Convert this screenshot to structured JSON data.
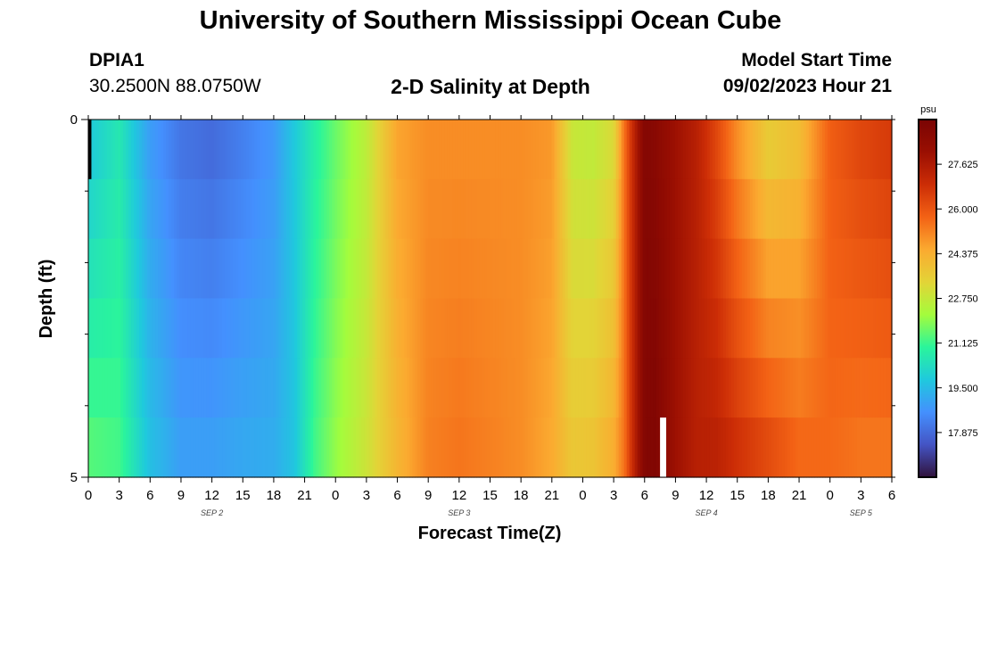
{
  "header": {
    "title": "University of Southern Mississippi Ocean Cube",
    "station": "DPIA1",
    "coords": "30.2500N  88.0750W",
    "plot_title": "2-D Salinity at Depth",
    "model_start_label": "Model Start Time",
    "model_start_value": "09/02/2023 Hour 21"
  },
  "footer": {
    "title": "University of Southern Mississippi Ocean Cube"
  },
  "chart_data": {
    "type": "heatmap",
    "title": "2-D Salinity at Depth",
    "xlabel": "Forecast Time(Z)",
    "ylabel": "Depth (ft)",
    "xlim": [
      0,
      78
    ],
    "ylim": [
      0,
      5
    ],
    "x_tick_labels": [
      "0",
      "3",
      "6",
      "9",
      "12",
      "15",
      "18",
      "21",
      "0",
      "3",
      "6",
      "9",
      "12",
      "15",
      "18",
      "21",
      "0",
      "3",
      "6",
      "9",
      "12",
      "15",
      "18",
      "21",
      "0",
      "3",
      "6"
    ],
    "y_tick_labels": [
      "0",
      "5"
    ],
    "date_labels": [
      {
        "text": "SEP 2",
        "hour": 12
      },
      {
        "text": "SEP 3",
        "hour": 36
      },
      {
        "text": "SEP 4",
        "hour": 60
      },
      {
        "text": "SEP 5",
        "hour": 75
      }
    ],
    "colorbar": {
      "unit": "psu",
      "min": 16.25,
      "max": 29.25,
      "ticks": [
        "17.875",
        "19.500",
        "21.125",
        "22.750",
        "24.375",
        "26.000",
        "27.625"
      ],
      "colors": [
        "#30123b",
        "#4454c4",
        "#4490fe",
        "#1fc9dd",
        "#2af59b",
        "#a4fc3c",
        "#e3d437",
        "#fbaa30",
        "#f36215",
        "#cc2d06",
        "#9a0f02",
        "#7a0403"
      ]
    },
    "depth_layers": 6,
    "profile_hours": [
      0,
      3,
      6,
      9,
      12,
      15,
      18,
      20,
      22,
      24,
      27,
      30,
      33,
      36,
      39,
      42,
      45,
      47,
      49,
      51,
      52,
      53,
      54,
      55,
      57,
      59,
      61,
      63,
      66,
      69,
      72,
      75,
      78
    ],
    "surface_salinity": [
      19.8,
      20.6,
      18.9,
      18.1,
      17.9,
      18.3,
      18.8,
      19.8,
      20.8,
      21.6,
      22.6,
      24.6,
      25.0,
      25.0,
      25.0,
      25.0,
      24.8,
      22.8,
      22.7,
      23.2,
      25.4,
      27.3,
      28.9,
      28.7,
      28.0,
      27.4,
      26.3,
      25.0,
      23.6,
      24.0,
      25.8,
      26.3,
      26.6
    ],
    "bottom_salinity": [
      21.4,
      21.2,
      19.6,
      18.9,
      18.9,
      19.1,
      19.2,
      19.7,
      21.2,
      22.0,
      22.9,
      24.2,
      25.2,
      25.4,
      25.2,
      25.0,
      24.5,
      23.7,
      23.8,
      24.4,
      25.4,
      27.3,
      28.9,
      29.0,
      28.0,
      27.4,
      27.3,
      26.8,
      26.2,
      25.6,
      25.6,
      25.4,
      25.4
    ],
    "missing_cells": [
      {
        "hour_start": 0,
        "hour_end": 0.3,
        "layer": 0
      },
      {
        "hour_start": 55.5,
        "hour_end": 56.1,
        "layer": 5
      }
    ]
  }
}
